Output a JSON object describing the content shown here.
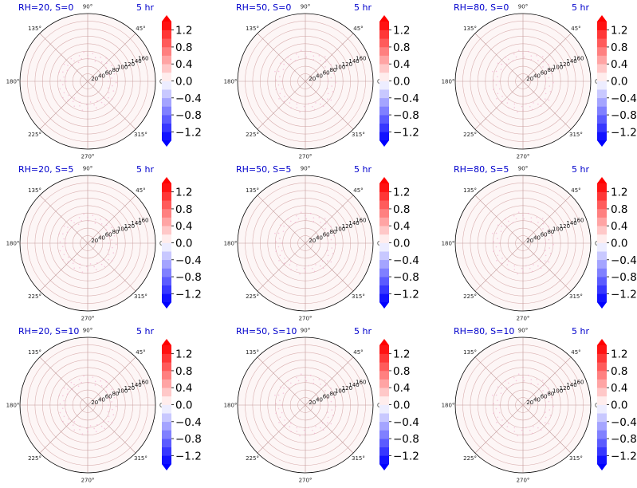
{
  "figure": {
    "grid_rows": 3,
    "grid_cols": 3
  },
  "colormap": {
    "name": "bwr",
    "low_color": "#0000ff",
    "mid_color": "#ffffff",
    "high_color": "#ff0000",
    "grid_color": "#d9b0b0",
    "spoke_color": "#c09a9a",
    "marker_color": "#f0a0c8"
  },
  "colorbar": {
    "vmin": -1.4,
    "vmax": 1.4,
    "levels": 14,
    "extend": "both",
    "ticks": [
      -1.2,
      -0.8,
      -0.4,
      0.0,
      0.4,
      0.8,
      1.2
    ],
    "tick_labels": [
      "−1.2",
      "−0.8",
      "−0.4",
      "0.0",
      "0.4",
      "0.8",
      "1.2"
    ]
  },
  "chart_data": {
    "type": "polar-contour",
    "angular_ticks_deg": [
      0,
      45,
      90,
      135,
      180,
      225,
      270,
      315
    ],
    "angular_tick_labels": [
      "0°",
      "45°",
      "90°",
      "135°",
      "180°",
      "225°",
      "270°",
      "315°"
    ],
    "radial_ticks": [
      20,
      40,
      60,
      80,
      100,
      120,
      140,
      160
    ],
    "radial_tick_labels": [
      "20",
      "40",
      "60",
      "80",
      "100",
      "120",
      "140",
      "160"
    ],
    "rmax": 180,
    "panels": [
      {
        "title": "RH=20, S=0",
        "time": "5 hr",
        "RH": 20,
        "S": 0,
        "value": 0.0,
        "marker_r": [
          55,
          80
        ]
      },
      {
        "title": "RH=50, S=0",
        "time": "5 hr",
        "RH": 50,
        "S": 0,
        "value": 0.0,
        "marker_r": [
          60,
          85
        ]
      },
      {
        "title": "RH=80, S=0",
        "time": "5 hr",
        "RH": 80,
        "S": 0,
        "value": 0.0,
        "marker_r": [
          60,
          85
        ]
      },
      {
        "title": "RH=20, S=5",
        "time": "5 hr",
        "RH": 20,
        "S": 5,
        "value": 0.0,
        "marker_r": [
          55,
          80
        ]
      },
      {
        "title": "RH=50, S=5",
        "time": "5 hr",
        "RH": 50,
        "S": 5,
        "value": 0.0,
        "marker_r": [
          60,
          85
        ]
      },
      {
        "title": "RH=80, S=5",
        "time": "5 hr",
        "RH": 80,
        "S": 5,
        "value": 0.0,
        "marker_r": [
          60,
          85
        ]
      },
      {
        "title": "RH=20, S=10",
        "time": "5 hr",
        "RH": 20,
        "S": 10,
        "value": 0.0,
        "marker_r": [
          55,
          80
        ]
      },
      {
        "title": "RH=50, S=10",
        "time": "5 hr",
        "RH": 50,
        "S": 10,
        "value": 0.0,
        "marker_r": [
          60,
          85
        ]
      },
      {
        "title": "RH=80, S=10",
        "time": "5 hr",
        "RH": 80,
        "S": 10,
        "value": 0.0,
        "marker_r": [
          60,
          85
        ]
      }
    ]
  }
}
